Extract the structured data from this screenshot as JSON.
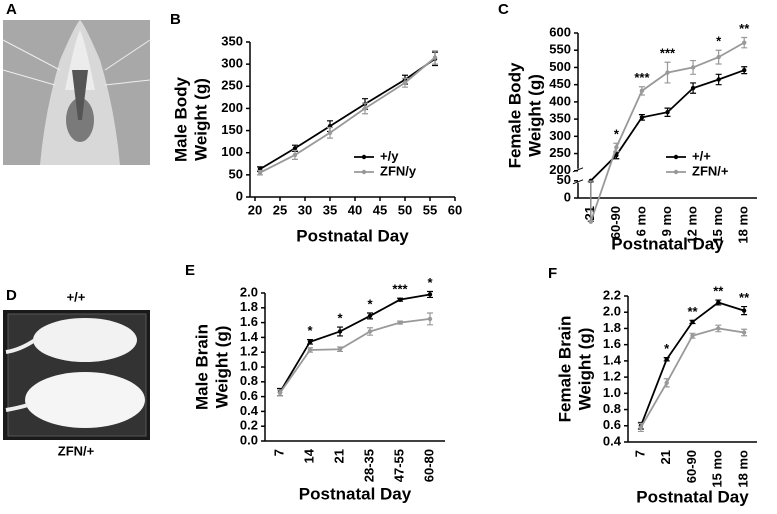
{
  "photos": [
    {
      "panel": "A"
    },
    {
      "panel": "D",
      "labels": [
        "+/+",
        "ZFN/+"
      ]
    }
  ],
  "chart_data": [
    {
      "type": "line",
      "panel": "B",
      "xlabel": "Postnatal Day",
      "ylabel": [
        "Male Body",
        "Weight (g)"
      ],
      "x": [
        21,
        28,
        35,
        42,
        50,
        56
      ],
      "xlim": [
        19,
        60
      ],
      "xticks": [
        20,
        25,
        30,
        35,
        40,
        45,
        50,
        55,
        60
      ],
      "ylim": [
        0,
        350
      ],
      "yticks": [
        0,
        50,
        100,
        150,
        200,
        250,
        300,
        350
      ],
      "series": [
        {
          "name": "+/y",
          "color": "#000000",
          "values": [
            63,
            110,
            160,
            210,
            265,
            312
          ],
          "errors": [
            5,
            7,
            12,
            12,
            10,
            15
          ]
        },
        {
          "name": "ZFN/y",
          "color": "#999999",
          "values": [
            55,
            95,
            145,
            200,
            258,
            315
          ],
          "errors": [
            5,
            10,
            12,
            12,
            10,
            15
          ]
        }
      ]
    },
    {
      "type": "line",
      "panel": "C",
      "xlabel": "Postnatal Day",
      "ylabel": [
        "Female Body",
        "Weight (g)"
      ],
      "categories": [
        "21",
        "60-90",
        "6 mo",
        "9 mo",
        "12 mo",
        "15 mo",
        "18 mo"
      ],
      "ylim": [
        0,
        600
      ],
      "ybreak": [
        50,
        200
      ],
      "yticks": [
        0,
        50,
        200,
        250,
        300,
        350,
        400,
        450,
        500,
        550,
        600
      ],
      "annotations": [
        null,
        "*",
        "***",
        "***",
        null,
        "*",
        "**"
      ],
      "series": [
        {
          "name": "+/+",
          "color": "#000000",
          "values": [
            50,
            245,
            355,
            370,
            440,
            465,
            492
          ],
          "errors": [
            3,
            10,
            8,
            12,
            15,
            15,
            10
          ]
        },
        {
          "name": "ZFN/+",
          "color": "#999999",
          "values": [
            52,
            268,
            432,
            485,
            500,
            530,
            572
          ],
          "errors": [
            3,
            12,
            12,
            30,
            20,
            20,
            15
          ]
        }
      ]
    },
    {
      "type": "line",
      "panel": "E",
      "xlabel": "Postnatal Day",
      "ylabel": [
        "Male Brain",
        "Weight (g)"
      ],
      "categories": [
        "7",
        "14",
        "21",
        "28-35",
        "47-55",
        "60-80"
      ],
      "ylim": [
        0,
        2.0
      ],
      "yticks": [
        {
          "value": 0,
          "label": "0.0"
        },
        0.2,
        0.4,
        0.6,
        0.8,
        {
          "value": 1,
          "label": "1.0"
        },
        1.2,
        1.4,
        1.6,
        1.8,
        {
          "value": 2,
          "label": "2.0"
        }
      ],
      "annotations": [
        null,
        "*",
        "*",
        "*",
        "***",
        "*"
      ],
      "series": [
        {
          "color": "#000000",
          "values": [
            0.66,
            1.34,
            1.48,
            1.69,
            1.91,
            1.98
          ],
          "errors": [
            0.05,
            0.03,
            0.06,
            0.04,
            0.02,
            0.04
          ]
        },
        {
          "color": "#999999",
          "values": [
            0.65,
            1.23,
            1.24,
            1.48,
            1.6,
            1.65
          ],
          "errors": [
            0.04,
            0.03,
            0.03,
            0.05,
            0.02,
            0.08
          ]
        }
      ]
    },
    {
      "type": "line",
      "panel": "F",
      "xlabel": "Postnatal Day",
      "ylabel": [
        "Female Brain",
        "Weight (g)"
      ],
      "categories": [
        "7",
        "21",
        "60-90",
        "15 mo",
        "18 mo"
      ],
      "ylim": [
        0.4,
        2.2
      ],
      "yticks": [
        0.4,
        0.6,
        0.8,
        {
          "value": 1,
          "label": "1.0"
        },
        1.2,
        1.4,
        1.6,
        1.8,
        {
          "value": 2,
          "label": "2.0"
        },
        2.2
      ],
      "annotations": [
        null,
        "*",
        "**",
        "**",
        "**"
      ],
      "series": [
        {
          "color": "#000000",
          "values": [
            0.6,
            1.42,
            1.88,
            2.12,
            2.02
          ],
          "errors": [
            0.04,
            0.02,
            0.02,
            0.03,
            0.05
          ]
        },
        {
          "color": "#999999",
          "values": [
            0.58,
            1.13,
            1.71,
            1.8,
            1.75
          ],
          "errors": [
            0.05,
            0.05,
            0.03,
            0.04,
            0.04
          ]
        }
      ]
    }
  ]
}
